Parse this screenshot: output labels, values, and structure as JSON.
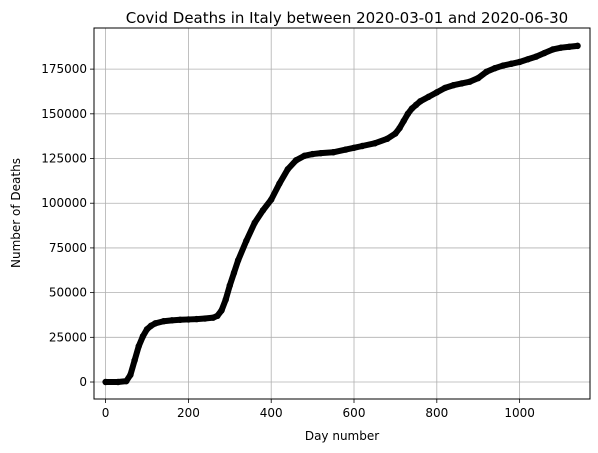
{
  "chart_data": {
    "type": "scatter",
    "title": "Covid Deaths in Italy between 2020-03-01 and 2020-06-30",
    "xlabel": "Day number",
    "ylabel": "Number of Deaths",
    "xlim": [
      -28,
      1170
    ],
    "ylim": [
      -9500,
      198000
    ],
    "xticks": [
      0,
      200,
      400,
      600,
      800,
      1000
    ],
    "yticks": [
      0,
      25000,
      50000,
      75000,
      100000,
      125000,
      150000,
      175000
    ],
    "grid": true,
    "marker_color": "#000000",
    "grid_color": "#b0b0b0",
    "series": [
      {
        "x": [
          0,
          30,
          50,
          60,
          70,
          80,
          90,
          100,
          110,
          120,
          140,
          160,
          180,
          200,
          220,
          240,
          260,
          270,
          280,
          290,
          300,
          310,
          320,
          340,
          360,
          380,
          400,
          420,
          440,
          460,
          480,
          500,
          520,
          550,
          580,
          600,
          620,
          650,
          680,
          700,
          710,
          720,
          730,
          740,
          750,
          760,
          780,
          800,
          820,
          840,
          860,
          880,
          900,
          920,
          940,
          960,
          980,
          1000,
          1020,
          1040,
          1060,
          1080,
          1100,
          1120,
          1140
        ],
        "y": [
          0,
          0,
          500,
          4000,
          12000,
          20000,
          25500,
          29500,
          31500,
          32800,
          34000,
          34500,
          34800,
          35000,
          35200,
          35500,
          36000,
          37000,
          40000,
          46000,
          54000,
          61000,
          68000,
          79000,
          89000,
          96000,
          102000,
          111000,
          119000,
          124000,
          126500,
          127500,
          128000,
          128500,
          130000,
          131000,
          132000,
          133500,
          136000,
          139000,
          142000,
          146000,
          150000,
          153000,
          155000,
          157000,
          159500,
          162000,
          164500,
          166000,
          167000,
          168000,
          170000,
          173500,
          175500,
          177000,
          178000,
          179000,
          180500,
          182000,
          184000,
          186000,
          187000,
          187500,
          188000
        ]
      }
    ]
  }
}
